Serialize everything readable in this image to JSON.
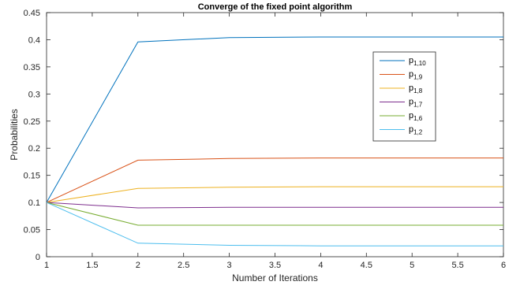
{
  "chart_data": {
    "type": "line",
    "title": "Converge of the fixed point algorithm",
    "xlabel": "Number of Iterations",
    "ylabel": "Probabilities",
    "x": [
      1,
      2,
      3,
      4,
      5,
      6
    ],
    "xlim": [
      1,
      6
    ],
    "ylim": [
      0,
      0.45
    ],
    "xticks": [
      "1",
      "1.5",
      "2",
      "2.5",
      "3",
      "3.5",
      "4",
      "4.5",
      "5",
      "5.5",
      "6"
    ],
    "yticks": [
      "0",
      "0.05",
      "0.1",
      "0.15",
      "0.2",
      "0.25",
      "0.3",
      "0.35",
      "0.4",
      "0.45"
    ],
    "grid": false,
    "legend_position": "top-right",
    "series": [
      {
        "name": "p",
        "sub": "1,10",
        "color": "#0072BD",
        "values": [
          0.1,
          0.396,
          0.404,
          0.405,
          0.405,
          0.405
        ]
      },
      {
        "name": "p",
        "sub": "1,9",
        "color": "#D95319",
        "values": [
          0.1,
          0.178,
          0.181,
          0.182,
          0.182,
          0.182
        ]
      },
      {
        "name": "p",
        "sub": "1,8",
        "color": "#EDB120",
        "values": [
          0.1,
          0.126,
          0.128,
          0.129,
          0.129,
          0.129
        ]
      },
      {
        "name": "p",
        "sub": "1,7",
        "color": "#7E2F8E",
        "values": [
          0.1,
          0.09,
          0.091,
          0.091,
          0.091,
          0.091
        ]
      },
      {
        "name": "p",
        "sub": "1,6",
        "color": "#77AC30",
        "values": [
          0.1,
          0.058,
          0.058,
          0.058,
          0.058,
          0.058
        ]
      },
      {
        "name": "p",
        "sub": "1,2",
        "color": "#4DBEEE",
        "values": [
          0.1,
          0.025,
          0.021,
          0.02,
          0.02,
          0.02
        ]
      }
    ]
  }
}
